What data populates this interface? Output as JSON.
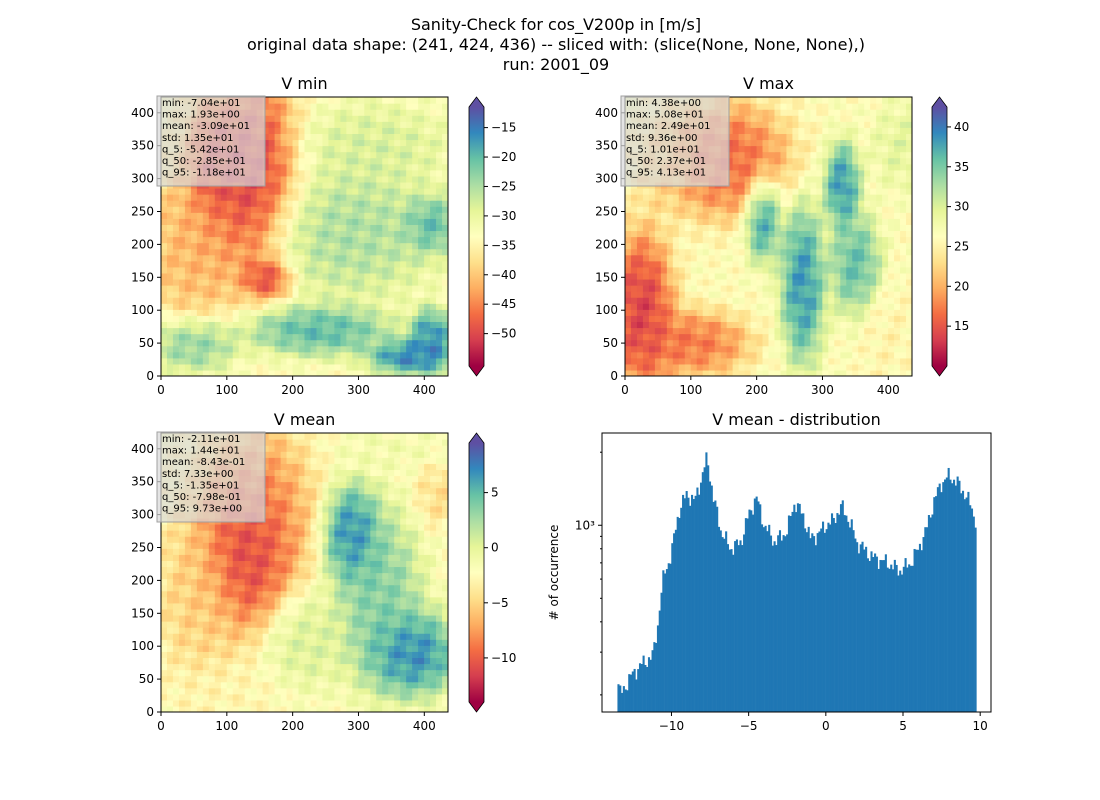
{
  "figure": {
    "title_lines": [
      "Sanity-Check for cos_V200p in [m/s]",
      "original data shape: (241, 424, 436) -- sliced with: (slice(None, None, None),)",
      "run: 2001_09"
    ]
  },
  "colors": {
    "hist_bar": "#1f77b4",
    "annotation_box": "#d8d8d8",
    "spectral_stops": [
      "#9e0142",
      "#d53e4f",
      "#f46d43",
      "#fdae61",
      "#fee08b",
      "#ffffbf",
      "#e6f598",
      "#abdda4",
      "#66c2a5",
      "#3288bd",
      "#5e4fa2"
    ]
  },
  "chart_data": [
    {
      "type": "heatmap",
      "id": "vmin",
      "title": "V min",
      "colormap": "Spectral",
      "xlim": [
        0,
        436
      ],
      "ylim": [
        0,
        424
      ],
      "xticks": [
        0,
        100,
        200,
        300,
        400
      ],
      "yticks": [
        0,
        50,
        100,
        150,
        200,
        250,
        300,
        350,
        400
      ],
      "clim": [
        -55.5,
        -11.5
      ],
      "colorbar_ticks": [
        -50,
        -45,
        -40,
        -35,
        -30,
        -25,
        -20,
        -15
      ],
      "colorbar_extend": "both",
      "annotation": [
        "min: -7.04e+01",
        "max: 1.93e+00",
        "mean: -3.09e+01",
        "std: 1.35e+01",
        "q_5: -5.42e+01",
        "q_50: -2.85e+01",
        "q_95: -1.18e+01"
      ],
      "features": [
        {
          "x": 130,
          "y": 310,
          "rx": 75,
          "ry": 140,
          "v": -55
        },
        {
          "x": 75,
          "y": 320,
          "rx": 30,
          "ry": 75,
          "v": -52
        },
        {
          "x": 50,
          "y": 200,
          "rx": 70,
          "ry": 120,
          "v": -43
        },
        {
          "x": 160,
          "y": 150,
          "rx": 35,
          "ry": 30,
          "v": -53
        },
        {
          "x": 380,
          "y": 30,
          "rx": 60,
          "ry": 25,
          "v": -12
        },
        {
          "x": 410,
          "y": 60,
          "rx": 30,
          "ry": 40,
          "v": -13
        },
        {
          "x": 240,
          "y": 70,
          "rx": 100,
          "ry": 35,
          "v": -17
        },
        {
          "x": 50,
          "y": 50,
          "rx": 60,
          "ry": 40,
          "v": -20
        },
        {
          "x": 320,
          "y": 350,
          "rx": 110,
          "ry": 60,
          "v": -27
        },
        {
          "x": 290,
          "y": 220,
          "rx": 120,
          "ry": 90,
          "v": -23
        },
        {
          "x": 410,
          "y": 230,
          "rx": 40,
          "ry": 40,
          "v": -17
        }
      ]
    },
    {
      "type": "heatmap",
      "id": "vmax",
      "title": "V max",
      "colormap": "Spectral",
      "xlim": [
        0,
        436
      ],
      "ylim": [
        0,
        424
      ],
      "xticks": [
        0,
        100,
        200,
        300,
        400
      ],
      "yticks": [
        0,
        50,
        100,
        150,
        200,
        250,
        300,
        350,
        400
      ],
      "clim": [
        10,
        42.5
      ],
      "colorbar_ticks": [
        15,
        20,
        25,
        30,
        35,
        40
      ],
      "colorbar_extend": "both",
      "annotation": [
        "min: 4.38e+00",
        "max: 5.08e+01",
        "mean: 2.49e+01",
        "std: 9.36e+00",
        "q_5: 1.01e+01",
        "q_50: 2.37e+01",
        "q_95: 4.13e+01"
      ],
      "features": [
        {
          "x": 25,
          "y": 100,
          "rx": 45,
          "ry": 110,
          "v": 11
        },
        {
          "x": 100,
          "y": 50,
          "rx": 80,
          "ry": 45,
          "v": 15
        },
        {
          "x": 150,
          "y": 330,
          "rx": 90,
          "ry": 80,
          "v": 14
        },
        {
          "x": 270,
          "y": 140,
          "rx": 30,
          "ry": 110,
          "v": 41
        },
        {
          "x": 330,
          "y": 290,
          "rx": 25,
          "ry": 60,
          "v": 41
        },
        {
          "x": 350,
          "y": 170,
          "rx": 35,
          "ry": 70,
          "v": 38
        },
        {
          "x": 210,
          "y": 240,
          "rx": 25,
          "ry": 60,
          "v": 40
        },
        {
          "x": 400,
          "y": 60,
          "rx": 40,
          "ry": 70,
          "v": 25
        },
        {
          "x": 420,
          "y": 350,
          "rx": 40,
          "ry": 60,
          "v": 30
        },
        {
          "x": 60,
          "y": 320,
          "rx": 40,
          "ry": 60,
          "v": 22
        }
      ]
    },
    {
      "type": "heatmap",
      "id": "vmean",
      "title": "V mean",
      "colormap": "Spectral",
      "xlim": [
        0,
        436
      ],
      "ylim": [
        0,
        424
      ],
      "xticks": [
        0,
        100,
        200,
        300,
        400
      ],
      "yticks": [
        0,
        50,
        100,
        150,
        200,
        250,
        300,
        350,
        400
      ],
      "clim": [
        -14,
        9.5
      ],
      "colorbar_ticks": [
        -10,
        -5,
        0,
        5
      ],
      "colorbar_extend": "both",
      "annotation": [
        "min: -2.11e+01",
        "max: 1.44e+01",
        "mean: -8.43e-01",
        "std: 7.33e+00",
        "q_5: -1.35e+01",
        "q_50: -7.98e-01",
        "q_95: 9.73e+00"
      ],
      "features": [
        {
          "x": 130,
          "y": 250,
          "rx": 60,
          "ry": 110,
          "v": -14
        },
        {
          "x": 140,
          "y": 300,
          "rx": 85,
          "ry": 130,
          "v": -9
        },
        {
          "x": 60,
          "y": 180,
          "rx": 60,
          "ry": 120,
          "v": -6
        },
        {
          "x": 290,
          "y": 270,
          "rx": 40,
          "ry": 70,
          "v": 9
        },
        {
          "x": 380,
          "y": 90,
          "rx": 65,
          "ry": 60,
          "v": 9
        },
        {
          "x": 330,
          "y": 180,
          "rx": 60,
          "ry": 120,
          "v": 5
        },
        {
          "x": 420,
          "y": 330,
          "rx": 30,
          "ry": 45,
          "v": -5
        },
        {
          "x": 350,
          "y": 400,
          "rx": 80,
          "ry": 25,
          "v": -1
        },
        {
          "x": 90,
          "y": 30,
          "rx": 90,
          "ry": 40,
          "v": -3
        },
        {
          "x": 220,
          "y": 110,
          "rx": 60,
          "ry": 70,
          "v": 1
        }
      ]
    },
    {
      "type": "bar",
      "id": "vmean-hist",
      "title": "V mean - distribution",
      "xlabel": "",
      "ylabel": "# of occurrence",
      "yscale": "log",
      "xlim": [
        -14.5,
        10.7
      ],
      "ylim": [
        170,
        2400
      ],
      "xticks": [
        -10,
        -5,
        0,
        5,
        10
      ],
      "yticks": [
        1000
      ],
      "ytick_labels": [
        "10³"
      ],
      "bin_edges": [
        -13.5,
        9.75
      ],
      "anchors": [
        {
          "x": -13.5,
          "y": 230
        },
        {
          "x": -13.3,
          "y": 200
        },
        {
          "x": -12.6,
          "y": 240
        },
        {
          "x": -12.0,
          "y": 265
        },
        {
          "x": -11.2,
          "y": 290
        },
        {
          "x": -10.9,
          "y": 380
        },
        {
          "x": -10.5,
          "y": 620
        },
        {
          "x": -10.0,
          "y": 760
        },
        {
          "x": -9.5,
          "y": 1150
        },
        {
          "x": -9.0,
          "y": 1350
        },
        {
          "x": -8.5,
          "y": 1250
        },
        {
          "x": -8.0,
          "y": 1600
        },
        {
          "x": -7.7,
          "y": 1900
        },
        {
          "x": -7.3,
          "y": 1300
        },
        {
          "x": -6.8,
          "y": 950
        },
        {
          "x": -6.2,
          "y": 800
        },
        {
          "x": -5.5,
          "y": 850
        },
        {
          "x": -5.0,
          "y": 1100
        },
        {
          "x": -4.5,
          "y": 1300
        },
        {
          "x": -4.0,
          "y": 1000
        },
        {
          "x": -3.3,
          "y": 850
        },
        {
          "x": -2.5,
          "y": 950
        },
        {
          "x": -2.0,
          "y": 1250
        },
        {
          "x": -1.5,
          "y": 1100
        },
        {
          "x": -1.0,
          "y": 880
        },
        {
          "x": -0.5,
          "y": 920
        },
        {
          "x": 0.0,
          "y": 1000
        },
        {
          "x": 0.5,
          "y": 1050
        },
        {
          "x": 1.0,
          "y": 1200
        },
        {
          "x": 1.5,
          "y": 1050
        },
        {
          "x": 2.0,
          "y": 850
        },
        {
          "x": 3.0,
          "y": 740
        },
        {
          "x": 4.0,
          "y": 700
        },
        {
          "x": 4.8,
          "y": 650
        },
        {
          "x": 5.5,
          "y": 700
        },
        {
          "x": 6.0,
          "y": 800
        },
        {
          "x": 6.5,
          "y": 950
        },
        {
          "x": 7.0,
          "y": 1250
        },
        {
          "x": 7.5,
          "y": 1500
        },
        {
          "x": 8.0,
          "y": 1600
        },
        {
          "x": 8.5,
          "y": 1500
        },
        {
          "x": 9.0,
          "y": 1350
        },
        {
          "x": 9.4,
          "y": 1200
        },
        {
          "x": 9.7,
          "y": 1050
        }
      ]
    }
  ]
}
